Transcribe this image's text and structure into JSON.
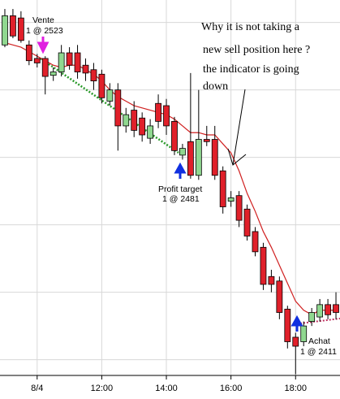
{
  "chart_data": {
    "type": "candlestick",
    "ylim": [
      2383,
      2550
    ],
    "yticks": [
      2390,
      2420,
      2450,
      2480,
      2510,
      2540
    ],
    "xlim": [
      -0.6,
      41.5
    ],
    "xticks": [
      {
        "value": 4,
        "label": "8/4"
      },
      {
        "value": 12,
        "label": "12:00"
      },
      {
        "value": 20,
        "label": "14:00"
      },
      {
        "value": 28,
        "label": "16:00"
      },
      {
        "value": 36,
        "label": "18:00"
      }
    ],
    "grid": true,
    "up_color": "#90d890",
    "down_color": "#e0202a",
    "open": [
      2530,
      2543,
      2542,
      2530,
      2524,
      2524,
      2516.5,
      2518,
      2526.5,
      2526.5,
      2521,
      2519,
      2517,
      2505,
      2510,
      2494,
      2501,
      2497.5,
      2488.5,
      2504,
      2503,
      2496,
      2481,
      2487,
      2472,
      2488,
      2488,
      2474,
      2460.5,
      2463,
      2457,
      2447,
      2440,
      2427,
      2425,
      2412.5,
      2400,
      2398,
      2407,
      2409,
      2414.5,
      2414.5
    ],
    "high": [
      2546,
      2546,
      2545,
      2532,
      2526,
      2525,
      2520,
      2530,
      2529,
      2530,
      2524,
      2522,
      2519,
      2513,
      2513,
      2502,
      2505,
      2500,
      2497,
      2508,
      2506,
      2498,
      2486,
      2517.5,
      2510,
      2494,
      2494,
      2476,
      2465,
      2465,
      2459,
      2449,
      2442,
      2430,
      2427,
      2414,
      2402,
      2407,
      2413,
      2417,
      2417,
      2420
    ],
    "low": [
      2529,
      2533,
      2531,
      2521,
      2520,
      2508,
      2514,
      2516,
      2519,
      2515,
      2514,
      2510,
      2504,
      2503,
      2483,
      2491,
      2489,
      2487,
      2486,
      2493,
      2490,
      2481,
      2479,
      2470.5,
      2470,
      2485,
      2470,
      2455,
      2458,
      2449,
      2443,
      2436,
      2421,
      2420,
      2408,
      2395,
      2383.5,
      2396,
      2405,
      2407,
      2408,
      2408
    ],
    "close": [
      2543,
      2534,
      2532,
      2523,
      2522,
      2516,
      2518,
      2526.5,
      2521,
      2518,
      2517.5,
      2514,
      2506.5,
      2510,
      2494,
      2499,
      2492,
      2490,
      2494,
      2496,
      2494,
      2483,
      2484,
      2472,
      2488,
      2487,
      2472,
      2458,
      2462,
      2452,
      2445,
      2438,
      2423.5,
      2423.5,
      2411,
      2398,
      2396,
      2405,
      2411,
      2414.5,
      2410,
      2411
    ],
    "indicator": {
      "color": "#d02020",
      "values": [
        2531,
        2530,
        2529,
        2527,
        2525,
        2523,
        2521,
        2520,
        2521,
        2521,
        2519,
        2517,
        2514,
        2510,
        2507,
        2505,
        2503,
        2502,
        2501,
        2500,
        2499,
        2497,
        2494,
        2491,
        2491,
        2490,
        2490,
        2486,
        2482,
        2474,
        2464,
        2456,
        2447,
        2440,
        2432,
        2424,
        2416,
        2412,
        2410,
        2412,
        2412,
        2412
      ]
    },
    "annotations": [
      {
        "label": "Vente",
        "detail": "1 @ 2523"
      },
      {
        "label": "Profit target",
        "detail": "1 @ 2481"
      },
      {
        "label": "Achat",
        "detail": "1 @ 2411"
      }
    ],
    "note": [
      "Why it is not taking a",
      "new sell position here ?",
      "the indicator is going",
      "down"
    ]
  }
}
